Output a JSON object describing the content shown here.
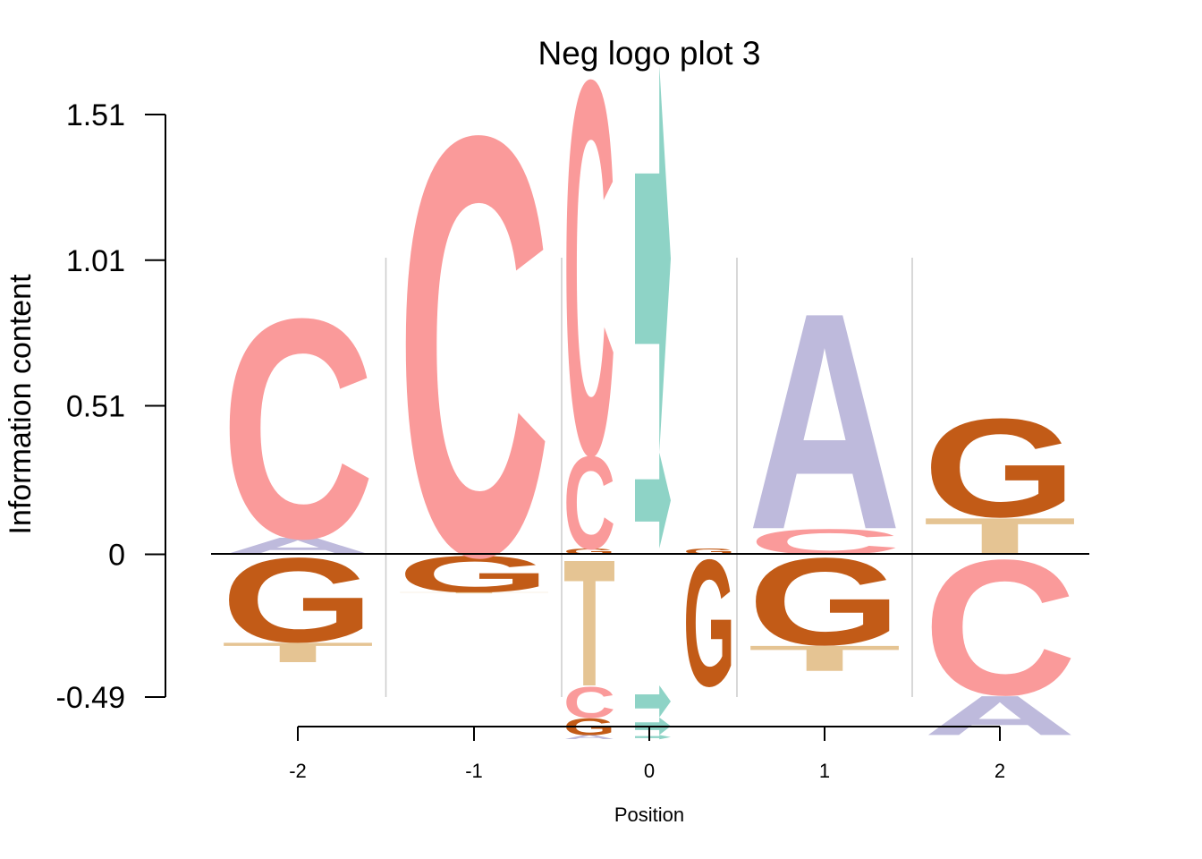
{
  "chart_data": {
    "type": "logo",
    "title": "Neg logo plot 3",
    "xlabel": "Position",
    "ylabel": "Information content",
    "ylim": [
      -0.49,
      1.51
    ],
    "yticks": [
      "1.51",
      "1.01",
      "0.51",
      "0",
      "-0.49"
    ],
    "ytick_values": [
      1.51,
      1.01,
      0.51,
      0,
      -0.49
    ],
    "grid": false,
    "colors": {
      "A": "#bebadc",
      "C": "#fa9a9a",
      "G": "#c25b17",
      "T": "#e5c493",
      "ARROW": "#8ed3c6"
    },
    "positions": [
      {
        "label": "-2",
        "type": "single",
        "stack": [
          {
            "letter": "G",
            "value": -0.3
          },
          {
            "letter": "T",
            "value": -0.07
          },
          {
            "letter": "A",
            "value": 0.06
          },
          {
            "letter": "C",
            "value": 0.78
          }
        ]
      },
      {
        "label": "-1",
        "type": "single",
        "stack": [
          {
            "letter": "G",
            "value": -0.13
          },
          {
            "letter": "T",
            "value": -0.004
          },
          {
            "letter": "A",
            "value": 0.004
          },
          {
            "letter": "C",
            "value": 1.49
          }
        ]
      },
      {
        "label": "0",
        "type": "dinucleotide",
        "stack": [
          {
            "left": "T",
            "right": "G",
            "value": -0.45
          },
          {
            "left": "C",
            "right": "ARROW",
            "value": -0.11
          },
          {
            "left": "G",
            "right": "ARROW",
            "value": -0.06
          },
          {
            "left": "A",
            "right": "ARROW",
            "value": -0.015
          },
          {
            "left": "G",
            "right": "G",
            "value": 0.02
          },
          {
            "left": "C",
            "right": "ARROW",
            "value": 0.33
          },
          {
            "left": "C",
            "right": "ARROW",
            "value": 1.33
          }
        ]
      },
      {
        "label": "1",
        "type": "single",
        "stack": [
          {
            "letter": "G",
            "value": -0.31
          },
          {
            "letter": "T",
            "value": -0.09
          },
          {
            "letter": "C",
            "value": 0.09
          },
          {
            "letter": "A",
            "value": 0.77
          }
        ]
      },
      {
        "label": "2",
        "type": "single",
        "stack": [
          {
            "letter": "C",
            "value": -0.48
          },
          {
            "letter": "A",
            "value": -0.14
          },
          {
            "letter": "T",
            "value": 0.13
          },
          {
            "letter": "G",
            "value": 0.35
          }
        ]
      }
    ]
  }
}
